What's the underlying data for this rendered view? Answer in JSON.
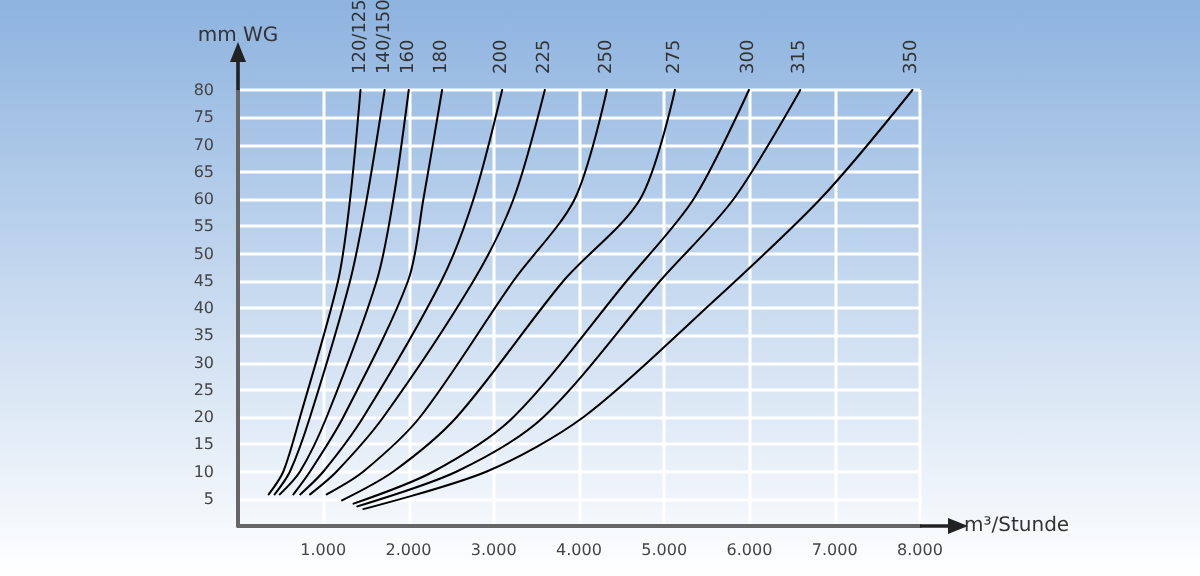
{
  "chart_data": {
    "type": "line",
    "xlabel": "m³/Stunde",
    "ylabel": "mm WG",
    "xlim": [
      0,
      8000
    ],
    "xticks": [
      {
        "value": 1000,
        "label": "1.000"
      },
      {
        "value": 2000,
        "label": "2.000"
      },
      {
        "value": 3000,
        "label": "3.000"
      },
      {
        "value": 4000,
        "label": "4.000"
      },
      {
        "value": 5000,
        "label": "5.000"
      },
      {
        "value": 6000,
        "label": "6.000"
      },
      {
        "value": 7000,
        "label": "7.000"
      },
      {
        "value": 8000,
        "label": "8.000"
      }
    ],
    "ylim": [
      0,
      80
    ],
    "yticks": [
      5,
      10,
      15,
      20,
      25,
      30,
      35,
      40,
      45,
      50,
      55,
      60,
      65,
      70,
      75,
      80
    ],
    "grid": true,
    "marker": "none",
    "line_style": "solid",
    "series": [
      {
        "name": "120/125",
        "color": "#000000",
        "x": [
          360,
          532,
          728,
          1174,
          1315,
          1437
        ],
        "values": [
          5.8,
          10,
          20,
          45,
          60,
          80
        ]
      },
      {
        "name": "140/150",
        "color": "#000000",
        "x": [
          430,
          610,
          845,
          1315,
          1510,
          1720
        ],
        "values": [
          5.8,
          10,
          20,
          45,
          60,
          80
        ]
      },
      {
        "name": "160",
        "color": "#000000",
        "x": [
          490,
          728,
          1040,
          1627,
          1823,
          2003
        ],
        "values": [
          5.8,
          10,
          20,
          45,
          60,
          80
        ]
      },
      {
        "name": "180",
        "color": "#000000",
        "x": [
          650,
          845,
          1236,
          1995,
          2175,
          2394
        ],
        "values": [
          5.8,
          10,
          20,
          45,
          60,
          80
        ]
      },
      {
        "name": "200",
        "color": "#000000",
        "x": [
          730,
          1002,
          1471,
          2387,
          2763,
          3099
        ],
        "values": [
          5.8,
          10,
          20,
          45,
          60,
          80
        ]
      },
      {
        "name": "225",
        "color": "#000000",
        "x": [
          845,
          1157,
          1706,
          2763,
          3232,
          3599
        ],
        "values": [
          5.8,
          10,
          20,
          45,
          60,
          80
        ]
      },
      {
        "name": "250",
        "color": "#000000",
        "x": [
          1040,
          1471,
          2136,
          3232,
          3950,
          4327
        ],
        "values": [
          5.8,
          10,
          20,
          45,
          60,
          80
        ]
      },
      {
        "name": "275",
        "color": "#000000",
        "x": [
          1220,
          1823,
          2566,
          3819,
          4718,
          5125
        ],
        "values": [
          4.7,
          10,
          20,
          45,
          60,
          80
        ]
      },
      {
        "name": "300",
        "color": "#000000",
        "x": [
          1355,
          2293,
          3232,
          4561,
          5345,
          5993
        ],
        "values": [
          4.1,
          10,
          20,
          45,
          60,
          80
        ]
      },
      {
        "name": "315",
        "color": "#000000",
        "x": [
          1400,
          2566,
          3584,
          4953,
          5814,
          6596
        ],
        "values": [
          3.6,
          10,
          20,
          45,
          60,
          80
        ]
      },
      {
        "name": "350",
        "color": "#000000",
        "x": [
          1470,
          2918,
          4054,
          5423,
          6831,
          7911
        ],
        "values": [
          3.1,
          10,
          20,
          39,
          60,
          80
        ]
      }
    ]
  }
}
